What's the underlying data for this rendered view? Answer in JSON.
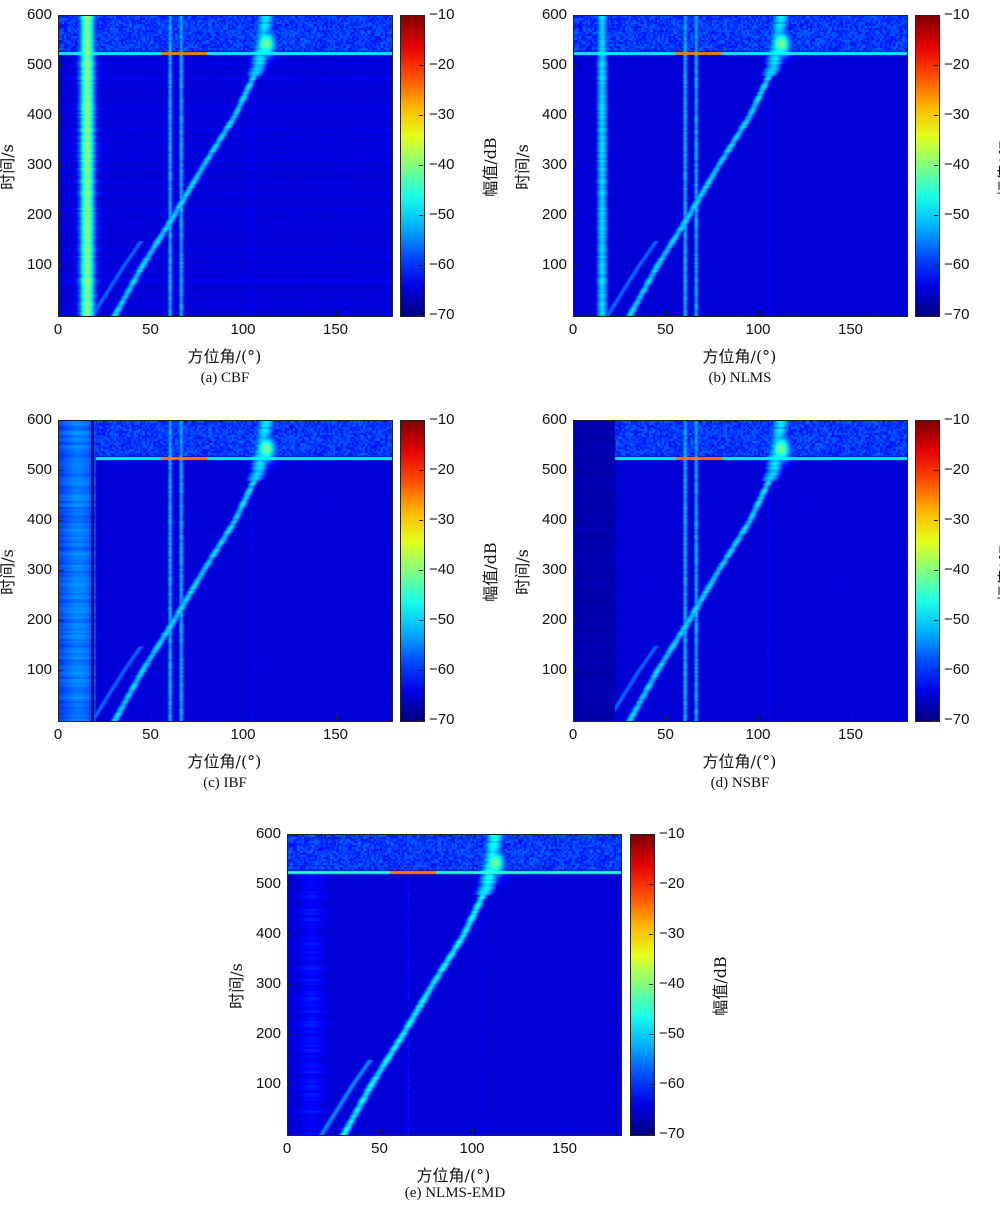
{
  "panels": [
    {
      "id": "a",
      "caption": "(a) CBF"
    },
    {
      "id": "b",
      "caption": "(b) NLMS"
    },
    {
      "id": "c",
      "caption": "(c) IBF"
    },
    {
      "id": "d",
      "caption": "(d) NSBF"
    },
    {
      "id": "e",
      "caption": "(e) NLMS-EMD"
    }
  ],
  "axes": {
    "xlabel": "方位角/(°)",
    "ylabel": "时间/s",
    "colorbar_label": "幅值/dB"
  },
  "colors": {
    "colormap": "jet",
    "background": "#263673"
  },
  "chart_data": [
    {
      "type": "heatmap",
      "caption": "(a) CBF",
      "xlabel": "方位角/(°)",
      "ylabel": "时间/s",
      "colorbar_label": "幅值/dB",
      "xlim": [
        0,
        180
      ],
      "ylim": [
        0,
        600
      ],
      "clim": [
        -70,
        -10
      ],
      "x_ticks": [
        0,
        50,
        100,
        150
      ],
      "y_ticks": [
        100,
        200,
        300,
        400,
        500,
        600
      ],
      "colorbar_ticks": [
        -10,
        -20,
        -30,
        -40,
        -50,
        -60,
        -70
      ],
      "features": {
        "track_strong": {
          "bearing": 15,
          "level_db": -40
        },
        "track_fixed_1": {
          "bearing": 60,
          "level_db": -52
        },
        "track_fixed_2": {
          "bearing": 66,
          "level_db": -52
        },
        "track_weak": {
          "bearing": 105,
          "level_db": -62
        },
        "moving_target": {
          "points": [
            [
              30,
              0
            ],
            [
              45,
              100
            ],
            [
              62,
              200
            ],
            [
              78,
              300
            ],
            [
              95,
              400
            ],
            [
              108,
              500
            ],
            [
              112,
              600
            ]
          ],
          "level_db": -50
        },
        "horizontal_line": {
          "time": 525,
          "x_start": 0,
          "level_db": -48
        },
        "upper_band": {
          "time_start": 530,
          "time_end": 600,
          "level_db": -58
        },
        "hot_spot": {
          "bearing": 112,
          "time": 545,
          "level_db": -40
        }
      }
    },
    {
      "type": "heatmap",
      "caption": "(b) NLMS",
      "xlabel": "方位角/(°)",
      "ylabel": "时间/s",
      "colorbar_label": "幅值/dB",
      "xlim": [
        0,
        180
      ],
      "ylim": [
        0,
        600
      ],
      "clim": [
        -70,
        -10
      ],
      "x_ticks": [
        0,
        50,
        100,
        150
      ],
      "y_ticks": [
        100,
        200,
        300,
        400,
        500,
        600
      ],
      "colorbar_ticks": [
        -10,
        -20,
        -30,
        -40,
        -50,
        -60,
        -70
      ],
      "features": {
        "track_strong": {
          "bearing": 15,
          "level_db": -50
        },
        "track_fixed_1": {
          "bearing": 60,
          "level_db": -52
        },
        "track_fixed_2": {
          "bearing": 66,
          "level_db": -52
        },
        "track_weak": {
          "bearing": 105,
          "level_db": -62
        },
        "moving_target": {
          "points": [
            [
              30,
              0
            ],
            [
              45,
              100
            ],
            [
              62,
              200
            ],
            [
              78,
              300
            ],
            [
              95,
              400
            ],
            [
              108,
              500
            ],
            [
              112,
              600
            ]
          ],
          "level_db": -50
        },
        "horizontal_line": {
          "time": 525,
          "x_start": 0,
          "level_db": -48
        },
        "upper_band": {
          "time_start": 530,
          "time_end": 600,
          "level_db": -58
        },
        "hot_spot": {
          "bearing": 112,
          "time": 545,
          "level_db": -40
        }
      }
    },
    {
      "type": "heatmap",
      "caption": "(c) IBF",
      "xlabel": "方位角/(°)",
      "ylabel": "时间/s",
      "colorbar_label": "幅值/dB",
      "xlim": [
        0,
        180
      ],
      "ylim": [
        0,
        600
      ],
      "clim": [
        -70,
        -10
      ],
      "x_ticks": [
        0,
        50,
        100,
        150
      ],
      "y_ticks": [
        100,
        200,
        300,
        400,
        500,
        600
      ],
      "colorbar_ticks": [
        -10,
        -20,
        -30,
        -40,
        -50,
        -60,
        -70
      ],
      "features": {
        "track_notch": {
          "bearing": 18,
          "level_db": -70
        },
        "left_band": {
          "bearing_start": 0,
          "bearing_end": 20,
          "level_db": -55
        },
        "track_fixed_1": {
          "bearing": 60,
          "level_db": -52
        },
        "track_fixed_2": {
          "bearing": 66,
          "level_db": -52
        },
        "track_weak": {
          "bearing": 105,
          "level_db": -62
        },
        "moving_target": {
          "points": [
            [
              30,
              0
            ],
            [
              45,
              100
            ],
            [
              62,
              200
            ],
            [
              78,
              300
            ],
            [
              95,
              400
            ],
            [
              108,
              500
            ],
            [
              112,
              600
            ]
          ],
          "level_db": -50
        },
        "horizontal_line": {
          "time": 525,
          "x_start": 20,
          "level_db": -48
        },
        "upper_band": {
          "time_start": 530,
          "time_end": 600,
          "level_db": -58
        },
        "hot_spot": {
          "bearing": 112,
          "time": 545,
          "level_db": -40
        }
      }
    },
    {
      "type": "heatmap",
      "caption": "(d) NSBF",
      "xlabel": "方位角/(°)",
      "ylabel": "时间/s",
      "colorbar_label": "幅值/dB",
      "xlim": [
        0,
        180
      ],
      "ylim": [
        0,
        600
      ],
      "clim": [
        -70,
        -10
      ],
      "x_ticks": [
        0,
        50,
        100,
        150
      ],
      "y_ticks": [
        100,
        200,
        300,
        400,
        500,
        600
      ],
      "colorbar_ticks": [
        -10,
        -20,
        -30,
        -40,
        -50,
        -60,
        -70
      ],
      "features": {
        "masked_region": {
          "bearing_start": 0,
          "bearing_end": 22
        },
        "track_fixed_1": {
          "bearing": 60,
          "level_db": -52
        },
        "track_fixed_2": {
          "bearing": 66,
          "level_db": -52
        },
        "track_weak": {
          "bearing": 105,
          "level_db": -62
        },
        "moving_target": {
          "points": [
            [
              30,
              0
            ],
            [
              45,
              100
            ],
            [
              62,
              200
            ],
            [
              78,
              300
            ],
            [
              95,
              400
            ],
            [
              108,
              500
            ],
            [
              112,
              600
            ]
          ],
          "level_db": -50
        },
        "horizontal_line": {
          "time": 525,
          "x_start": 22,
          "level_db": -48
        },
        "upper_band": {
          "time_start": 530,
          "time_end": 600,
          "level_db": -58
        },
        "hot_spot": {
          "bearing": 112,
          "time": 545,
          "level_db": -40
        }
      }
    },
    {
      "type": "heatmap",
      "caption": "(e) NLMS-EMD",
      "xlabel": "方位角/(°)",
      "ylabel": "时间/s",
      "colorbar_label": "幅值/dB",
      "xlim": [
        0,
        180
      ],
      "ylim": [
        0,
        600
      ],
      "clim": [
        -70,
        -10
      ],
      "x_ticks": [
        0,
        50,
        100,
        150
      ],
      "y_ticks": [
        100,
        200,
        300,
        400,
        500,
        600
      ],
      "colorbar_ticks": [
        -10,
        -20,
        -30,
        -40,
        -50,
        -60,
        -70
      ],
      "features": {
        "left_band": {
          "bearing_start": 0,
          "bearing_end": 25,
          "level_db": -62
        },
        "track_fixed_1": {
          "bearing": 65,
          "level_db": -62
        },
        "track_weak": {
          "bearing": 105,
          "level_db": -63
        },
        "moving_target": {
          "points": [
            [
              30,
              0
            ],
            [
              45,
              100
            ],
            [
              62,
              200
            ],
            [
              78,
              300
            ],
            [
              95,
              400
            ],
            [
              108,
              500
            ],
            [
              112,
              600
            ]
          ],
          "level_db": -48
        },
        "horizontal_line": {
          "time": 525,
          "x_start": 0,
          "level_db": -45
        },
        "upper_band": {
          "time_start": 530,
          "time_end": 600,
          "level_db": -58
        },
        "hot_spot": {
          "bearing": 112,
          "time": 545,
          "level_db": -40
        }
      }
    }
  ]
}
